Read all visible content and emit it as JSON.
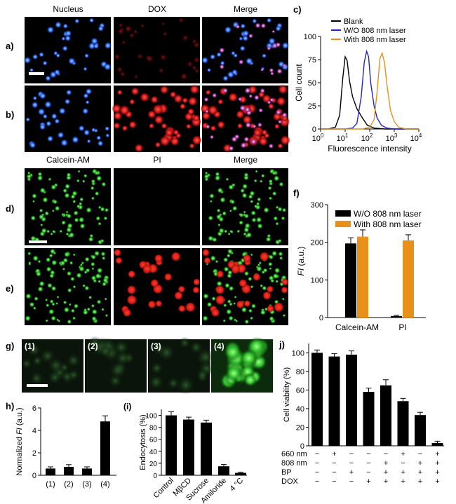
{
  "panel_labels": {
    "a": "a)",
    "b": "b)",
    "c": "c)",
    "d": "d)",
    "e": "e)",
    "f": "f)",
    "g": "g)",
    "h": "h)",
    "i": "(i)",
    "j": "j)"
  },
  "micrographs_top": {
    "column_titles": [
      "Nucleus",
      "DOX",
      "Merge"
    ]
  },
  "micrographs_mid": {
    "column_titles": [
      "Calcein-AM",
      "PI",
      "Merge"
    ]
  },
  "micrographs_g": {
    "labels": [
      "(1)",
      "(2)",
      "(3)",
      "(4)"
    ]
  },
  "colors": {
    "black": "#000000",
    "blue": "#2222cc",
    "orange": "#e8901a",
    "nucleus": "#3a7bff",
    "dox": "#e02020",
    "calcein": "#3fcf3a"
  },
  "chart_data": [
    {
      "id": "c",
      "type": "line",
      "xlabel": "Fluorescence intensity",
      "ylabel": "Cell count",
      "xscale": "log",
      "xlim": [
        1,
        10000
      ],
      "ylim": [
        0,
        100
      ],
      "xticks": [
        1,
        10,
        100,
        1000,
        10000
      ],
      "xtick_labels": [
        "10",
        "10",
        "10",
        "10",
        "10"
      ],
      "xtick_exponents": [
        "0",
        "1",
        "2",
        "3",
        "4"
      ],
      "yticks": [
        0,
        25,
        50,
        75,
        100
      ],
      "ytick_labels": [
        "0",
        "25",
        "50",
        "75",
        "100"
      ],
      "legend_position": "top-right",
      "series": [
        {
          "name": "Blank",
          "color": "#000000",
          "x": [
            1,
            2,
            4,
            6,
            8,
            10,
            12,
            15,
            20,
            30,
            50,
            80,
            150,
            400,
            1000,
            10000
          ],
          "y": [
            0,
            0,
            2,
            15,
            55,
            78,
            74,
            52,
            35,
            22,
            12,
            4,
            1,
            0,
            0,
            0
          ]
        },
        {
          "name": "W/O 808 nm laser",
          "color": "#2222cc",
          "x": [
            1,
            10,
            20,
            30,
            45,
            60,
            75,
            90,
            110,
            150,
            200,
            300,
            500,
            1000,
            10000
          ],
          "y": [
            0,
            0,
            1,
            6,
            35,
            72,
            84,
            78,
            50,
            25,
            12,
            4,
            1,
            0,
            0
          ]
        },
        {
          "name": "With 808 nm laser",
          "color": "#e8901a",
          "x": [
            1,
            50,
            100,
            150,
            200,
            260,
            320,
            400,
            500,
            700,
            1000,
            1500,
            3000,
            10000
          ],
          "y": [
            0,
            0,
            2,
            10,
            40,
            76,
            82,
            72,
            48,
            20,
            8,
            2,
            0,
            0
          ]
        }
      ]
    },
    {
      "id": "f",
      "type": "bar",
      "ylabel": "FI (a.u.)",
      "ylabel_italic": "FI",
      "ylabel_rest": " (a.u.)",
      "categories": [
        "Calcein-AM",
        "PI"
      ],
      "ylim": [
        0,
        300
      ],
      "yticks": [
        0,
        100,
        200,
        300
      ],
      "legend_position": "top-left",
      "series": [
        {
          "name": "W/O 808 nm laser",
          "color": "#000000",
          "values": [
            197,
            4
          ],
          "errors": [
            15,
            2
          ]
        },
        {
          "name": "With 808 nm laser",
          "color": "#e8901a",
          "values": [
            215,
            205
          ],
          "errors": [
            18,
            15
          ]
        }
      ]
    },
    {
      "id": "h",
      "type": "bar",
      "ylabel": "Normalized FI (a.u.)",
      "ylabel_pre": "Normalized ",
      "ylabel_italic": "FI",
      "ylabel_rest": " (a.u.)",
      "categories": [
        "(1)",
        "(2)",
        "(3)",
        "(4)"
      ],
      "values": [
        0.6,
        0.75,
        0.6,
        4.8
      ],
      "errors": [
        0.15,
        0.2,
        0.15,
        0.5
      ],
      "ylim": [
        0,
        6
      ],
      "yticks": [
        0,
        2,
        4,
        6
      ]
    },
    {
      "id": "i",
      "type": "bar",
      "ylabel": "Endocytosis (%)",
      "categories": [
        "Control",
        "MβCD",
        "Sucrose",
        "Amiloride",
        "4 °C"
      ],
      "values": [
        100,
        93,
        88,
        15,
        4
      ],
      "errors": [
        6,
        4,
        4,
        3,
        1
      ],
      "ylim": [
        0,
        110
      ],
      "yticks": [
        0,
        20,
        40,
        60,
        80,
        100
      ]
    },
    {
      "id": "j",
      "type": "bar",
      "ylabel": "Cell viability (%)",
      "ylim": [
        0,
        110
      ],
      "yticks": [
        0,
        20,
        40,
        60,
        80,
        100
      ],
      "values": [
        100,
        96,
        98,
        58,
        65,
        48,
        33,
        3
      ],
      "errors": [
        3,
        3,
        4,
        4,
        6,
        3,
        3,
        2
      ],
      "condition_rows": [
        {
          "name": "660 nm",
          "signs": [
            "−",
            "+",
            "−",
            "−",
            "−",
            "+",
            "−",
            "+"
          ]
        },
        {
          "name": "808 nm",
          "signs": [
            "−",
            "−",
            "−",
            "−",
            "+",
            "−",
            "+",
            "+"
          ]
        },
        {
          "name": "BP",
          "signs": [
            "−",
            "−",
            "+",
            "−",
            "+",
            "+",
            "+",
            "+"
          ]
        },
        {
          "name": "DOX",
          "signs": [
            "−",
            "−",
            "−",
            "+",
            "+",
            "+",
            "+",
            "+"
          ]
        }
      ]
    }
  ]
}
